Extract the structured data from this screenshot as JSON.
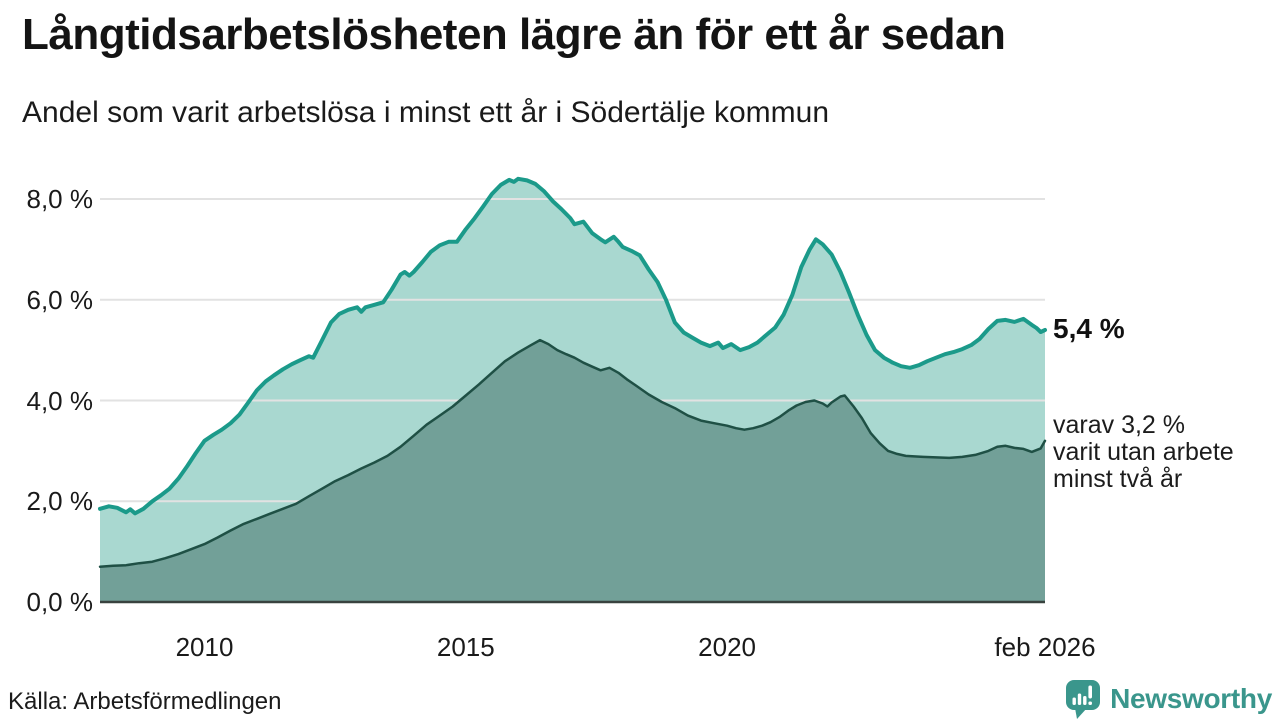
{
  "chart_data": {
    "type": "area",
    "title": "Långtidsarbetslösheten lägre än för ett år sedan",
    "subtitle": "Andel som varit arbetslösa i minst ett år i Södertälje kommun",
    "grid": "on",
    "grid_color": "#e2e2e2",
    "baseline_color": "#38423f",
    "x_axis": {
      "range_years": [
        2008.0,
        2026.083
      ],
      "ticks": [
        {
          "label": "2010",
          "year": 2010.0
        },
        {
          "label": "2015",
          "year": 2015.0
        },
        {
          "label": "2020",
          "year": 2020.0
        },
        {
          "label": "feb 2026",
          "year": 2026.083
        }
      ]
    },
    "y_axis": {
      "unit": "%",
      "range": [
        0,
        8.8
      ],
      "ticks": [
        {
          "label": "8,0 %",
          "value": 8
        },
        {
          "label": "6,0 %",
          "value": 6
        },
        {
          "label": "4,0 %",
          "value": 4
        },
        {
          "label": "2,0 %",
          "value": 2
        },
        {
          "label": "0,0 %",
          "value": 0
        }
      ]
    },
    "series": [
      {
        "name": "Andel som varit arbetslösa minst ett år",
        "line_color": "#1b9a8a",
        "fill_color": "#a9d8d0",
        "line_width": 4,
        "end_value": 5.4,
        "end_value_label": "5,4 %",
        "points": [
          [
            2008.0,
            1.85
          ],
          [
            2008.17,
            1.9
          ],
          [
            2008.33,
            1.87
          ],
          [
            2008.5,
            1.78
          ],
          [
            2008.58,
            1.84
          ],
          [
            2008.67,
            1.76
          ],
          [
            2008.83,
            1.85
          ],
          [
            2009.0,
            2.0
          ],
          [
            2009.17,
            2.12
          ],
          [
            2009.33,
            2.25
          ],
          [
            2009.5,
            2.45
          ],
          [
            2009.67,
            2.7
          ],
          [
            2009.83,
            2.95
          ],
          [
            2010.0,
            3.2
          ],
          [
            2010.17,
            3.32
          ],
          [
            2010.33,
            3.42
          ],
          [
            2010.5,
            3.55
          ],
          [
            2010.67,
            3.72
          ],
          [
            2010.83,
            3.95
          ],
          [
            2011.0,
            4.2
          ],
          [
            2011.17,
            4.38
          ],
          [
            2011.33,
            4.5
          ],
          [
            2011.5,
            4.62
          ],
          [
            2011.67,
            4.72
          ],
          [
            2011.83,
            4.8
          ],
          [
            2012.0,
            4.88
          ],
          [
            2012.08,
            4.85
          ],
          [
            2012.25,
            5.2
          ],
          [
            2012.42,
            5.55
          ],
          [
            2012.58,
            5.72
          ],
          [
            2012.75,
            5.8
          ],
          [
            2012.92,
            5.85
          ],
          [
            2013.0,
            5.76
          ],
          [
            2013.08,
            5.85
          ],
          [
            2013.25,
            5.9
          ],
          [
            2013.42,
            5.95
          ],
          [
            2013.58,
            6.2
          ],
          [
            2013.75,
            6.5
          ],
          [
            2013.83,
            6.55
          ],
          [
            2013.92,
            6.48
          ],
          [
            2014.0,
            6.55
          ],
          [
            2014.17,
            6.75
          ],
          [
            2014.33,
            6.95
          ],
          [
            2014.5,
            7.08
          ],
          [
            2014.67,
            7.15
          ],
          [
            2014.83,
            7.15
          ],
          [
            2015.0,
            7.4
          ],
          [
            2015.17,
            7.62
          ],
          [
            2015.33,
            7.85
          ],
          [
            2015.5,
            8.1
          ],
          [
            2015.67,
            8.28
          ],
          [
            2015.83,
            8.38
          ],
          [
            2015.92,
            8.34
          ],
          [
            2016.0,
            8.4
          ],
          [
            2016.17,
            8.37
          ],
          [
            2016.33,
            8.3
          ],
          [
            2016.5,
            8.15
          ],
          [
            2016.67,
            7.95
          ],
          [
            2016.83,
            7.8
          ],
          [
            2017.0,
            7.62
          ],
          [
            2017.08,
            7.5
          ],
          [
            2017.25,
            7.55
          ],
          [
            2017.42,
            7.32
          ],
          [
            2017.58,
            7.2
          ],
          [
            2017.67,
            7.14
          ],
          [
            2017.83,
            7.25
          ],
          [
            2017.92,
            7.15
          ],
          [
            2018.0,
            7.05
          ],
          [
            2018.17,
            6.97
          ],
          [
            2018.33,
            6.88
          ],
          [
            2018.5,
            6.6
          ],
          [
            2018.67,
            6.35
          ],
          [
            2018.83,
            6.0
          ],
          [
            2019.0,
            5.55
          ],
          [
            2019.17,
            5.35
          ],
          [
            2019.33,
            5.25
          ],
          [
            2019.5,
            5.15
          ],
          [
            2019.67,
            5.08
          ],
          [
            2019.83,
            5.15
          ],
          [
            2019.92,
            5.04
          ],
          [
            2020.08,
            5.12
          ],
          [
            2020.25,
            5.0
          ],
          [
            2020.42,
            5.06
          ],
          [
            2020.58,
            5.15
          ],
          [
            2020.75,
            5.3
          ],
          [
            2020.92,
            5.45
          ],
          [
            2021.08,
            5.7
          ],
          [
            2021.25,
            6.1
          ],
          [
            2021.42,
            6.65
          ],
          [
            2021.58,
            7.0
          ],
          [
            2021.7,
            7.2
          ],
          [
            2021.83,
            7.1
          ],
          [
            2022.0,
            6.9
          ],
          [
            2022.17,
            6.55
          ],
          [
            2022.33,
            6.15
          ],
          [
            2022.5,
            5.7
          ],
          [
            2022.67,
            5.3
          ],
          [
            2022.83,
            5.0
          ],
          [
            2023.0,
            4.85
          ],
          [
            2023.17,
            4.75
          ],
          [
            2023.33,
            4.68
          ],
          [
            2023.5,
            4.65
          ],
          [
            2023.67,
            4.7
          ],
          [
            2023.83,
            4.78
          ],
          [
            2024.0,
            4.85
          ],
          [
            2024.17,
            4.92
          ],
          [
            2024.33,
            4.96
          ],
          [
            2024.5,
            5.02
          ],
          [
            2024.67,
            5.1
          ],
          [
            2024.83,
            5.22
          ],
          [
            2025.0,
            5.42
          ],
          [
            2025.17,
            5.58
          ],
          [
            2025.33,
            5.6
          ],
          [
            2025.5,
            5.56
          ],
          [
            2025.67,
            5.62
          ],
          [
            2025.83,
            5.5
          ],
          [
            2025.92,
            5.44
          ],
          [
            2026.0,
            5.36
          ],
          [
            2026.083,
            5.4
          ]
        ]
      },
      {
        "name": "varav utan arbete minst två år",
        "line_color": "#1f5045",
        "fill_color": "#72a098",
        "line_width": 2.5,
        "end_value": 3.2,
        "end_value_label": "3,2 %",
        "points": [
          [
            2008.0,
            0.7
          ],
          [
            2008.25,
            0.72
          ],
          [
            2008.5,
            0.73
          ],
          [
            2008.75,
            0.77
          ],
          [
            2009.0,
            0.8
          ],
          [
            2009.25,
            0.87
          ],
          [
            2009.5,
            0.95
          ],
          [
            2009.75,
            1.05
          ],
          [
            2010.0,
            1.15
          ],
          [
            2010.25,
            1.28
          ],
          [
            2010.5,
            1.42
          ],
          [
            2010.75,
            1.55
          ],
          [
            2011.0,
            1.65
          ],
          [
            2011.25,
            1.75
          ],
          [
            2011.5,
            1.85
          ],
          [
            2011.75,
            1.95
          ],
          [
            2012.0,
            2.1
          ],
          [
            2012.25,
            2.25
          ],
          [
            2012.5,
            2.4
          ],
          [
            2012.75,
            2.52
          ],
          [
            2013.0,
            2.65
          ],
          [
            2013.25,
            2.77
          ],
          [
            2013.5,
            2.9
          ],
          [
            2013.75,
            3.08
          ],
          [
            2014.0,
            3.3
          ],
          [
            2014.25,
            3.52
          ],
          [
            2014.5,
            3.7
          ],
          [
            2014.75,
            3.88
          ],
          [
            2015.0,
            4.1
          ],
          [
            2015.25,
            4.32
          ],
          [
            2015.5,
            4.55
          ],
          [
            2015.75,
            4.78
          ],
          [
            2016.0,
            4.95
          ],
          [
            2016.25,
            5.1
          ],
          [
            2016.42,
            5.2
          ],
          [
            2016.58,
            5.12
          ],
          [
            2016.75,
            5.0
          ],
          [
            2016.92,
            4.92
          ],
          [
            2017.08,
            4.85
          ],
          [
            2017.25,
            4.75
          ],
          [
            2017.42,
            4.67
          ],
          [
            2017.58,
            4.6
          ],
          [
            2017.75,
            4.65
          ],
          [
            2017.92,
            4.55
          ],
          [
            2018.08,
            4.42
          ],
          [
            2018.25,
            4.3
          ],
          [
            2018.5,
            4.12
          ],
          [
            2018.75,
            3.97
          ],
          [
            2019.0,
            3.85
          ],
          [
            2019.25,
            3.7
          ],
          [
            2019.5,
            3.6
          ],
          [
            2019.75,
            3.55
          ],
          [
            2020.0,
            3.5
          ],
          [
            2020.17,
            3.45
          ],
          [
            2020.33,
            3.42
          ],
          [
            2020.5,
            3.45
          ],
          [
            2020.67,
            3.5
          ],
          [
            2020.83,
            3.57
          ],
          [
            2021.0,
            3.67
          ],
          [
            2021.17,
            3.8
          ],
          [
            2021.33,
            3.9
          ],
          [
            2021.5,
            3.97
          ],
          [
            2021.67,
            4.0
          ],
          [
            2021.83,
            3.94
          ],
          [
            2021.92,
            3.88
          ],
          [
            2022.0,
            3.96
          ],
          [
            2022.17,
            4.08
          ],
          [
            2022.25,
            4.1
          ],
          [
            2022.42,
            3.88
          ],
          [
            2022.58,
            3.65
          ],
          [
            2022.75,
            3.35
          ],
          [
            2022.92,
            3.15
          ],
          [
            2023.08,
            3.0
          ],
          [
            2023.25,
            2.94
          ],
          [
            2023.42,
            2.9
          ],
          [
            2023.58,
            2.89
          ],
          [
            2023.75,
            2.88
          ],
          [
            2024.0,
            2.87
          ],
          [
            2024.25,
            2.86
          ],
          [
            2024.5,
            2.88
          ],
          [
            2024.75,
            2.92
          ],
          [
            2025.0,
            3.0
          ],
          [
            2025.17,
            3.08
          ],
          [
            2025.33,
            3.1
          ],
          [
            2025.5,
            3.06
          ],
          [
            2025.67,
            3.04
          ],
          [
            2025.83,
            2.98
          ],
          [
            2026.0,
            3.05
          ],
          [
            2026.083,
            3.2
          ]
        ]
      }
    ],
    "annotations": {
      "primary": "5,4 %",
      "secondary_lines": [
        "varav 3,2 %",
        "varit utan arbete",
        "minst två år"
      ]
    }
  },
  "footer": {
    "source": "Källa: Arbetsförmedlingen",
    "brand": "Newsworthy",
    "brand_color": "#3a968c"
  }
}
